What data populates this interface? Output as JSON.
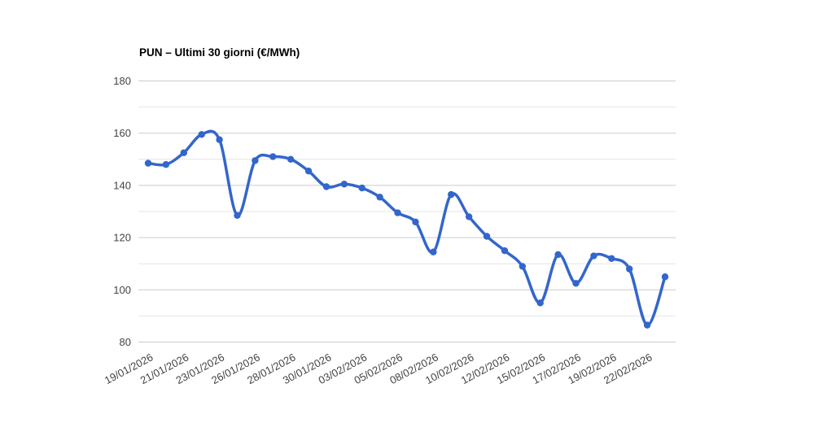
{
  "title": "PUN – Ultimi 30 giorni (€/MWh)",
  "colors": {
    "series_line": "#3366cc",
    "marker_fill": "#3366cc",
    "grid_major": "#cccccc",
    "grid_minor": "#e6e6e6",
    "axis_label_text": "#444444",
    "title_text": "#000000",
    "background": "#ffffff"
  },
  "chart_data": {
    "type": "line",
    "title": "PUN – Ultimi 30 giorni (€/MWh)",
    "xlabel": "",
    "ylabel": "",
    "unit": "€/MWh",
    "ylim": [
      80,
      180
    ],
    "y_ticks": [
      180,
      160,
      140,
      120,
      100,
      80
    ],
    "y_minor_gridlines": [
      170,
      150,
      130,
      110,
      90
    ],
    "grid": true,
    "legend": "none",
    "smooth_curve": true,
    "point_markers": true,
    "x_tick_labels": [
      "19/01/2026",
      "21/01/2026",
      "23/01/2026",
      "26/01/2026",
      "28/01/2026",
      "30/01/2026",
      "03/02/2026",
      "05/02/2026",
      "08/02/2026",
      "10/02/2026",
      "12/02/2026",
      "15/02/2026",
      "17/02/2026",
      "19/02/2026",
      "22/02/2026"
    ],
    "x_tick_point_indices": [
      0,
      2,
      4,
      6,
      8,
      10,
      12,
      14,
      16,
      18,
      20,
      22,
      24,
      26,
      28
    ],
    "values": [
      148.5,
      148,
      152.5,
      159.5,
      157.5,
      128.5,
      149.5,
      151,
      150,
      145.5,
      139.5,
      140.5,
      139,
      135.5,
      129.5,
      126,
      114.5,
      136.5,
      128,
      120.5,
      115,
      109,
      95,
      113.5,
      102.5,
      113,
      112,
      108,
      86.5,
      105
    ]
  }
}
